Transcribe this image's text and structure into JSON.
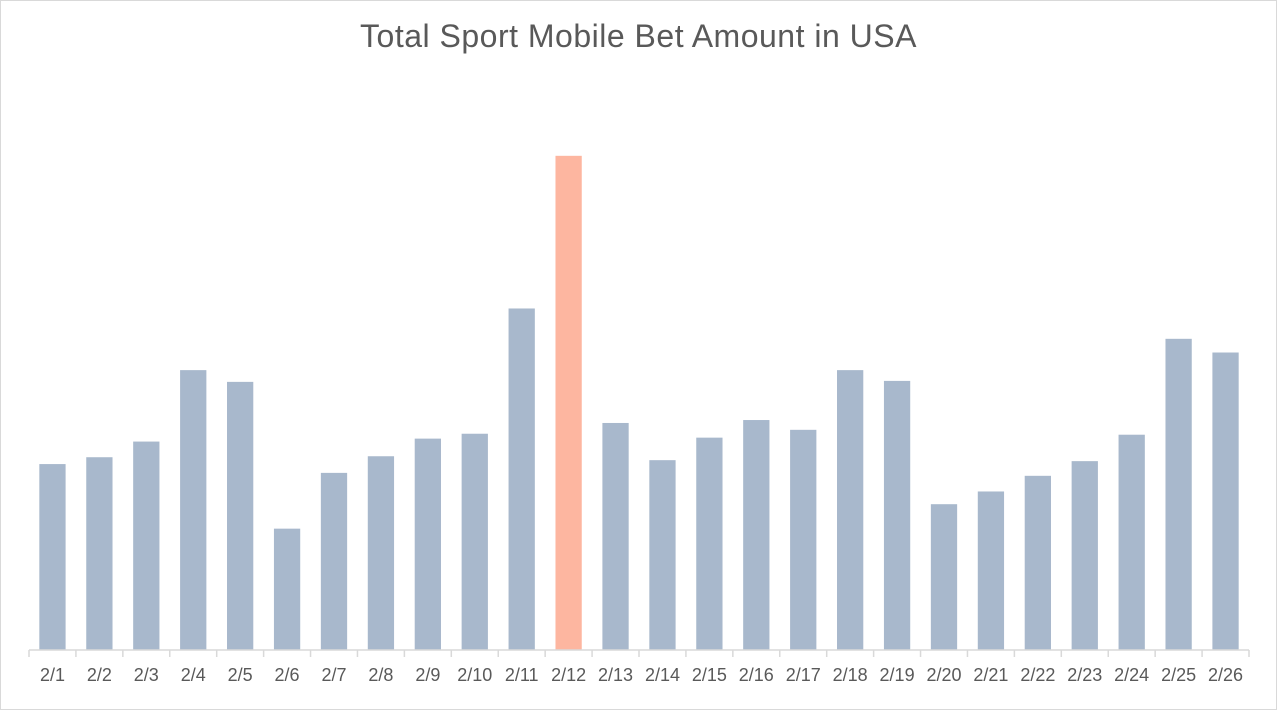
{
  "chart_data": {
    "type": "bar",
    "title": "Total Sport Mobile Bet Amount in USA",
    "xlabel": "",
    "ylabel": "",
    "categories": [
      "2/1",
      "2/2",
      "2/3",
      "2/4",
      "2/5",
      "2/6",
      "2/7",
      "2/8",
      "2/9",
      "2/10",
      "2/11",
      "2/12",
      "2/13",
      "2/14",
      "2/15",
      "2/16",
      "2/17",
      "2/18",
      "2/19",
      "2/20",
      "2/21",
      "2/22",
      "2/23",
      "2/24",
      "2/25",
      "2/26"
    ],
    "values": [
      190,
      197,
      213,
      286,
      274,
      124,
      181,
      198,
      216,
      221,
      349,
      505,
      232,
      194,
      217,
      235,
      225,
      286,
      275,
      149,
      162,
      178,
      193,
      220,
      318,
      304
    ],
    "ylim": [
      0,
      560
    ],
    "highlight_index": 11,
    "grid": false,
    "legend": "none",
    "colors": {
      "bar": "#a8b8cc",
      "highlight": "#fdb6a0",
      "axis": "#d9d9d9",
      "text": "#595959"
    }
  }
}
